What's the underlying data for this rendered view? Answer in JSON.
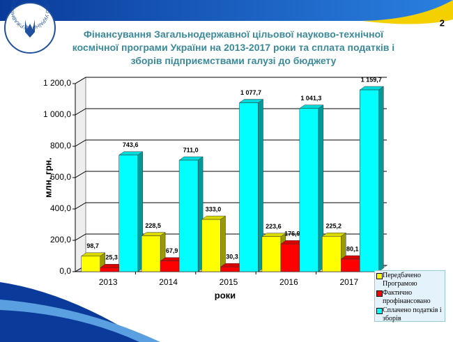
{
  "logo_text": "ДЕРЖАВНЕ КОСМІЧНЕ АГЕНТСТВО УКРАЇНИ",
  "page_number": "2",
  "chart_data": {
    "type": "bar3d",
    "title": "Фінансування Загальнодержавної цільової науково-технічної космічної програми України на 2013-2017 роки та сплата податків і зборів підприємствами галузі до бюджету",
    "y_label": "млн. грн.",
    "x_label": "роки",
    "categories": [
      "2013",
      "2014",
      "2015",
      "2016",
      "2017"
    ],
    "series": [
      {
        "name": "Передбачено Програмою",
        "color": "#ffff00",
        "values": [
          98.7,
          228.5,
          333.0,
          223.6,
          225.2
        ],
        "value_labels": [
          "98,7",
          "228,5",
          "333,0",
          "223,6",
          "225,2"
        ]
      },
      {
        "name": "Фактично профінансовано",
        "color": "#ff0000",
        "values": [
          25.3,
          67.9,
          30.3,
          176.9,
          80.1
        ],
        "value_labels": [
          "25,3",
          "67,9",
          "30,3",
          "176,9",
          "80,1"
        ]
      },
      {
        "name": "Сплачено податків і зборів",
        "color": "#00ffff",
        "values": [
          743.6,
          711.0,
          1077.7,
          1041.3,
          1159.7
        ],
        "value_labels": [
          "743,6",
          "711,0",
          "1 077,7",
          "1 041,3",
          "1 159,7"
        ]
      }
    ],
    "ylim": [
      0,
      1200
    ],
    "yticks": [
      {
        "value": 0,
        "label": "0,0"
      },
      {
        "value": 200,
        "label": "200,0"
      },
      {
        "value": 400,
        "label": "400,0"
      },
      {
        "value": 600,
        "label": "600,0"
      },
      {
        "value": 800,
        "label": "800,0"
      },
      {
        "value": 1000,
        "label": "1 000,0"
      },
      {
        "value": 1200,
        "label": "1 200,0"
      }
    ],
    "grid": true
  }
}
